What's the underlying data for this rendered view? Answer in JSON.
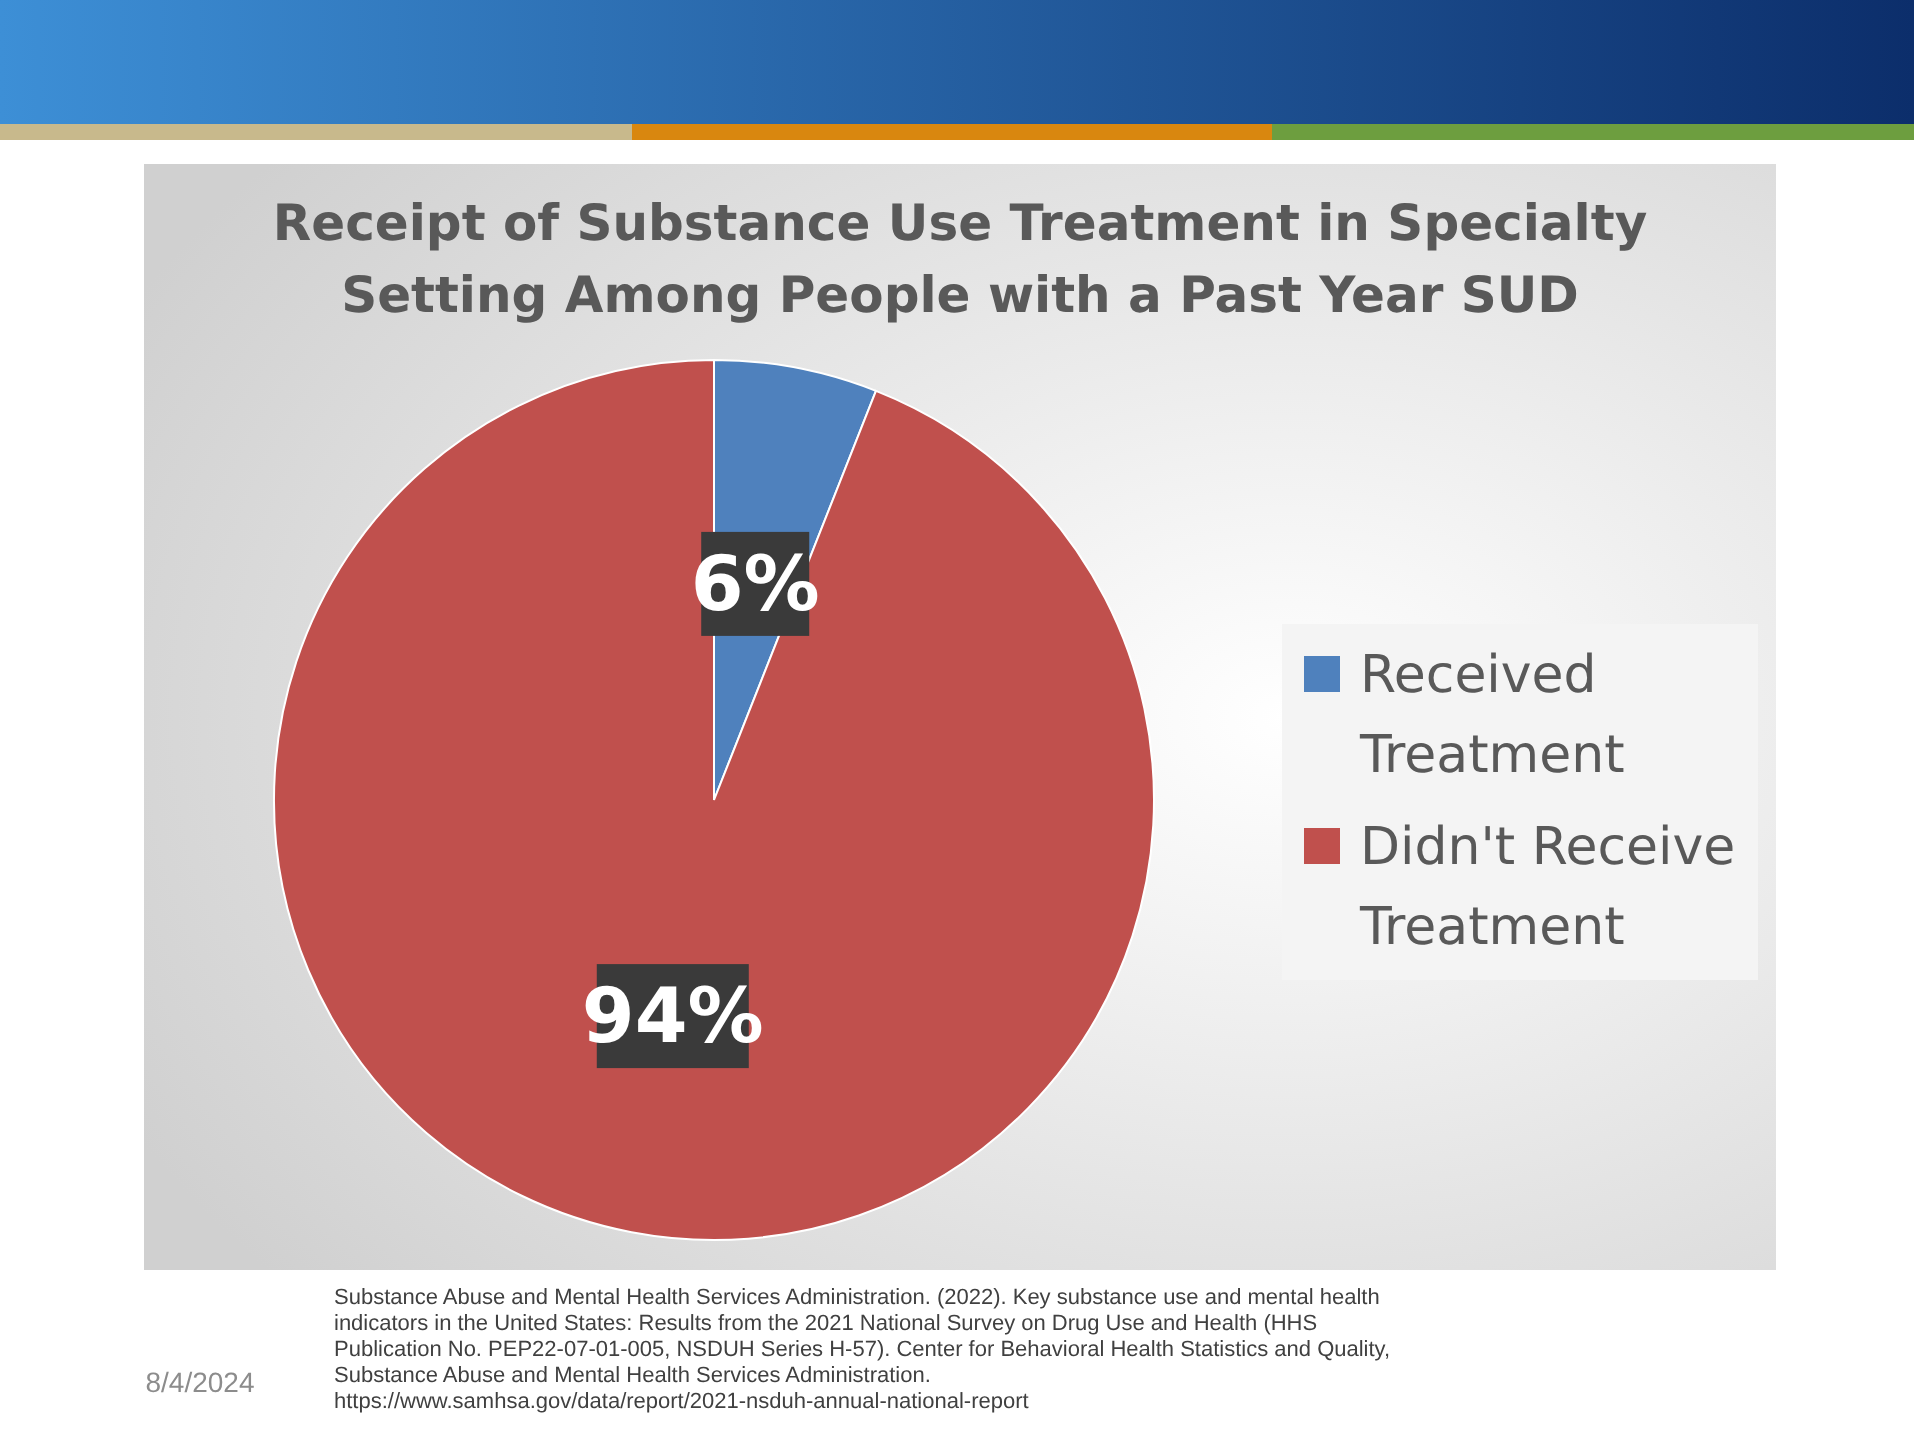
{
  "chart_data": {
    "type": "pie",
    "title": "Receipt of Substance Use Treatment in Specialty Setting Among People with a Past Year SUD",
    "categories": [
      "Received Treatment",
      "Didn't Receive Treatment"
    ],
    "values": [
      6,
      94
    ],
    "colors": [
      "#4f81bd",
      "#c0504d"
    ],
    "value_labels": [
      "6%",
      "94%"
    ],
    "legend": "right",
    "annotations": [
      "Substance Abuse and Mental Health Services Administration. (2022). Key substance use and mental health indicators in the United States: Results from the 2021 National Survey on Drug Use and Health (HHS Publication No. PEP22-07-01-005, NSDUH Series H-57). Center for Behavioral Health Statistics and Quality, Substance Abuse and Mental Health Services Administration. https://www.samhsa.gov/data/report/2021-nsduh-annual-national-report",
      "8/4/2024"
    ]
  }
}
